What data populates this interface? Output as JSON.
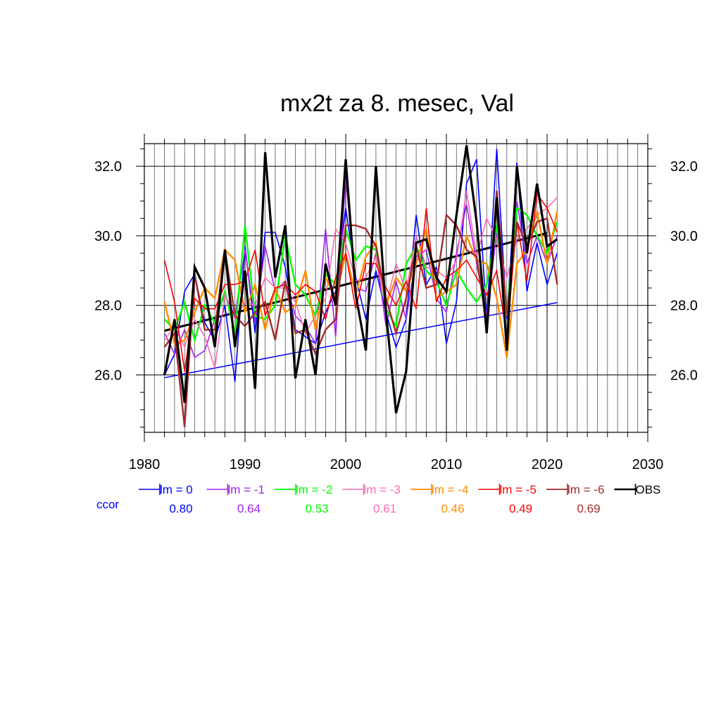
{
  "chart_data": {
    "type": "line",
    "title": "mx2t za 8. mesec, Val",
    "xlabel": "",
    "ylabel": "",
    "xlim": [
      1980,
      2030
    ],
    "ylim": [
      24.35,
      32.65
    ],
    "xticks": [
      1980,
      1990,
      2000,
      2010,
      2020,
      2030
    ],
    "yticks": [
      26.0,
      28.0,
      30.0,
      32.0
    ],
    "ytick_labels": [
      "26.0",
      "28.0",
      "30.0",
      "32.0"
    ],
    "grid": true,
    "legend_position": "bottom",
    "ccor_label": "ccor",
    "years": [
      1982,
      1983,
      1984,
      1985,
      1986,
      1987,
      1988,
      1989,
      1990,
      1991,
      1992,
      1993,
      1994,
      1995,
      1996,
      1997,
      1998,
      1999,
      2000,
      2001,
      2002,
      2003,
      2004,
      2005,
      2006,
      2007,
      2008,
      2009,
      2010,
      2011,
      2012,
      2013,
      2014,
      2015,
      2016,
      2017,
      2018,
      2019,
      2020,
      2021
    ],
    "series": [
      {
        "name": "lm = 0",
        "color": "#0000ff",
        "ccor": "0.80",
        "width": 1.6,
        "values": [
          26.0,
          26.6,
          28.4,
          28.9,
          27.5,
          27.0,
          28.0,
          25.8,
          29.7,
          27.2,
          30.1,
          30.1,
          29.1,
          27.3,
          27.1,
          26.9,
          27.8,
          28.4,
          30.8,
          28.8,
          27.6,
          29.0,
          27.8,
          26.8,
          27.6,
          30.6,
          28.6,
          29.1,
          26.9,
          28.1,
          31.5,
          32.2,
          27.6,
          32.5,
          27.6,
          32.1,
          28.4,
          29.8,
          28.6,
          29.5
        ]
      },
      {
        "name": "lm = -1",
        "color": "#a020f0",
        "ccor": "0.64",
        "width": 1.6,
        "values": [
          27.2,
          26.6,
          27.3,
          26.5,
          26.7,
          27.6,
          28.3,
          27.7,
          29.6,
          27.5,
          29.7,
          28.4,
          28.7,
          27.7,
          27.4,
          26.9,
          30.2,
          27.1,
          31.7,
          28.5,
          28.4,
          29.5,
          27.4,
          28.7,
          27.6,
          29.4,
          29.6,
          28.2,
          27.8,
          29.5,
          30.9,
          29.2,
          27.7,
          30.1,
          27.7,
          31.0,
          29.2,
          30.0,
          29.2,
          30.0
        ]
      },
      {
        "name": "lm = -2",
        "color": "#00ff00",
        "ccor": "0.53",
        "width": 2.4,
        "values": [
          27.6,
          27.3,
          28.1,
          27.0,
          28.0,
          27.5,
          28.4,
          27.2,
          30.3,
          27.7,
          27.6,
          28.0,
          30.0,
          28.6,
          28.3,
          27.7,
          28.9,
          28.6,
          30.2,
          29.3,
          29.7,
          29.6,
          27.9,
          27.4,
          29.2,
          29.7,
          29.0,
          28.7,
          28.0,
          29.0,
          28.5,
          28.1,
          28.6,
          30.3,
          27.8,
          30.8,
          30.6,
          30.0,
          29.5,
          30.4
        ]
      },
      {
        "name": "lm = -3",
        "color": "#ff69b4",
        "ccor": "0.61",
        "width": 1.6,
        "values": [
          27.0,
          27.4,
          26.8,
          27.6,
          27.1,
          26.2,
          28.3,
          27.6,
          28.1,
          28.0,
          28.8,
          28.5,
          28.5,
          28.1,
          27.2,
          27.7,
          28.2,
          30.2,
          29.8,
          28.7,
          28.8,
          29.4,
          28.0,
          29.2,
          28.4,
          30.0,
          29.1,
          29.0,
          28.8,
          29.3,
          31.3,
          29.4,
          30.5,
          29.9,
          28.8,
          29.9,
          30.2,
          30.6,
          30.8,
          31.1
        ]
      },
      {
        "name": "lm = -4",
        "color": "#ff8c00",
        "ccor": "0.46",
        "width": 2.4,
        "values": [
          28.1,
          26.9,
          27.0,
          27.8,
          28.5,
          28.2,
          29.6,
          29.3,
          27.8,
          28.6,
          27.3,
          28.5,
          27.8,
          28.0,
          29.0,
          27.3,
          28.8,
          28.2,
          29.5,
          28.3,
          29.4,
          29.8,
          28.0,
          28.8,
          28.4,
          29.2,
          30.2,
          28.2,
          28.4,
          28.6,
          30.0,
          29.3,
          29.2,
          28.2,
          26.5,
          29.2,
          29.6,
          30.7,
          29.2,
          30.7
        ]
      },
      {
        "name": "lm = -5",
        "color": "#ff0000",
        "ccor": "0.49",
        "width": 1.6,
        "values": [
          29.3,
          28.1,
          26.1,
          28.2,
          27.9,
          27.9,
          28.6,
          28.6,
          28.7,
          29.6,
          27.7,
          28.5,
          28.6,
          28.3,
          28.6,
          28.4,
          27.6,
          28.8,
          29.5,
          27.9,
          29.2,
          29.2,
          28.5,
          28.0,
          28.7,
          27.9,
          30.8,
          28.1,
          28.8,
          29.0,
          29.3,
          28.8,
          28.3,
          29.0,
          27.1,
          30.4,
          28.7,
          31.2,
          30.8,
          30.1
        ]
      },
      {
        "name": "lm = -6",
        "color": "#a52a2a",
        "ccor": "0.69",
        "width": 2.4,
        "values": [
          26.8,
          27.2,
          24.5,
          28.9,
          27.3,
          27.3,
          29.6,
          27.7,
          27.4,
          27.8,
          28.1,
          27.0,
          28.7,
          27.2,
          27.3,
          26.6,
          27.3,
          27.6,
          30.3,
          30.3,
          30.2,
          29.7,
          28.2,
          27.2,
          28.2,
          29.7,
          28.5,
          28.6,
          30.6,
          30.3,
          29.6,
          29.4,
          27.4,
          31.3,
          27.7,
          30.4,
          29.7,
          30.4,
          30.5,
          28.6
        ]
      },
      {
        "name": "OBS",
        "color": "#000000",
        "ccor": "",
        "width": 3.2,
        "values": [
          26.0,
          27.6,
          25.2,
          29.1,
          28.5,
          26.8,
          29.6,
          26.8,
          29.0,
          25.6,
          32.4,
          28.8,
          30.3,
          25.9,
          27.6,
          26.0,
          29.2,
          28.0,
          32.2,
          28.3,
          26.7,
          32.0,
          27.8,
          24.9,
          26.1,
          29.8,
          29.9,
          28.8,
          28.4,
          30.6,
          32.6,
          30.4,
          27.2,
          31.1,
          26.7,
          32.0,
          29.5,
          31.5,
          29.7,
          29.9
        ]
      }
    ],
    "trend_lines": [
      {
        "name": "OBS trend",
        "color": "#000000",
        "width": 3,
        "x": [
          1982,
          2020
        ],
        "y": [
          27.27,
          30.08
        ]
      },
      {
        "name": "lm = 0 trend",
        "color": "#0000ff",
        "width": 1.5,
        "x": [
          1982,
          2021
        ],
        "y": [
          25.92,
          28.08
        ]
      }
    ]
  }
}
